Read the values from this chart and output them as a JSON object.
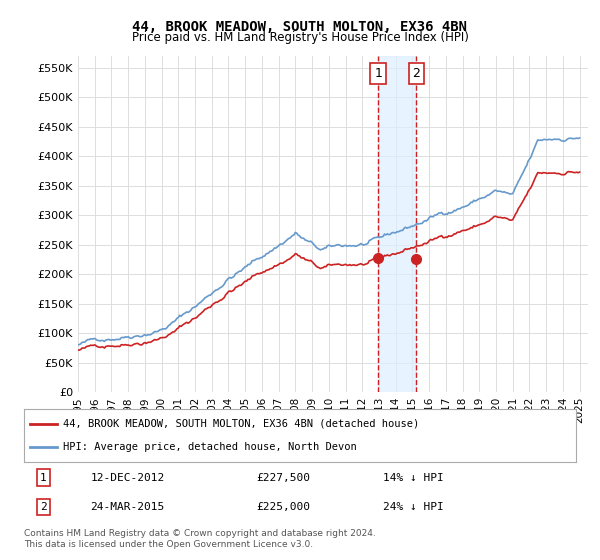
{
  "title": "44, BROOK MEADOW, SOUTH MOLTON, EX36 4BN",
  "subtitle": "Price paid vs. HM Land Registry's House Price Index (HPI)",
  "ylabel_ticks": [
    "£0",
    "£50K",
    "£100K",
    "£150K",
    "£200K",
    "£250K",
    "£300K",
    "£350K",
    "£400K",
    "£450K",
    "£500K",
    "£550K"
  ],
  "ytick_values": [
    0,
    50000,
    100000,
    150000,
    200000,
    250000,
    300000,
    350000,
    400000,
    450000,
    500000,
    550000
  ],
  "ylim": [
    0,
    570000
  ],
  "xlim_start": 1995.0,
  "xlim_end": 2025.5,
  "hpi_color": "#6699cc",
  "price_color": "#cc2222",
  "sale1_date": 2012.95,
  "sale1_price": 227500,
  "sale2_date": 2015.23,
  "sale2_price": 225000,
  "legend_label1": "44, BROOK MEADOW, SOUTH MOLTON, EX36 4BN (detached house)",
  "legend_label2": "HPI: Average price, detached house, North Devon",
  "table_row1": [
    "1",
    "12-DEC-2012",
    "£227,500",
    "14% ↓ HPI"
  ],
  "table_row2": [
    "2",
    "24-MAR-2015",
    "£225,000",
    "24% ↓ HPI"
  ],
  "footnote": "Contains HM Land Registry data © Crown copyright and database right 2024.\nThis data is licensed under the Open Government Licence v3.0.",
  "bg_color": "#ffffff",
  "grid_color": "#dddddd",
  "shade_color": "#ddeeff"
}
